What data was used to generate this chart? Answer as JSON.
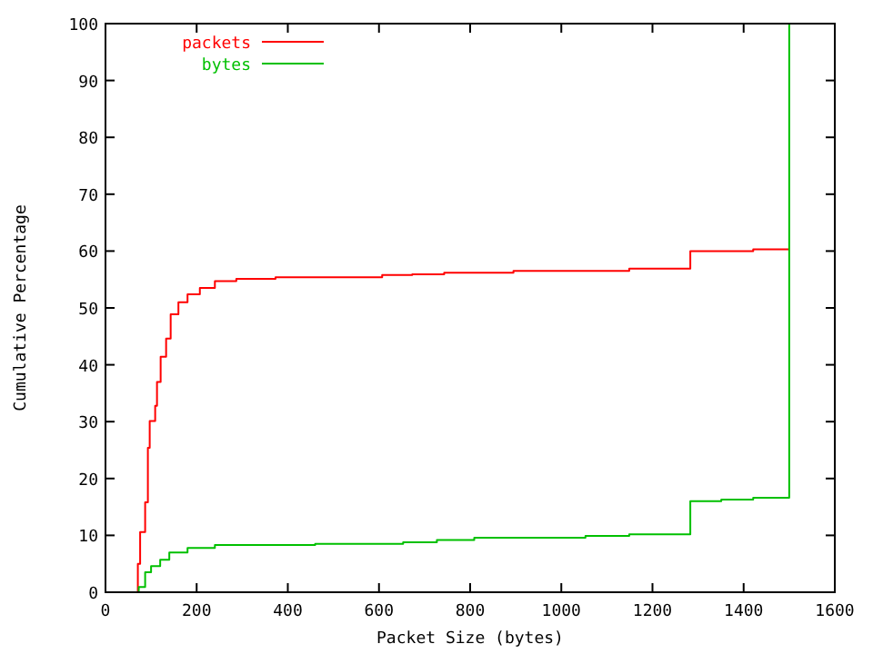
{
  "chart_data": {
    "type": "step",
    "xlabel": "Packet Size (bytes)",
    "ylabel": "Cumulative Percentage",
    "xlim": [
      0,
      1600
    ],
    "ylim": [
      0,
      100
    ],
    "xticks": [
      0,
      200,
      400,
      600,
      800,
      1000,
      1200,
      1400,
      1600
    ],
    "yticks": [
      0,
      10,
      20,
      30,
      40,
      50,
      60,
      70,
      80,
      90,
      100
    ],
    "grid": false,
    "legend": "top left",
    "line_style": "solid",
    "series": [
      {
        "name": "packets",
        "color": "#ff0000",
        "x": [
          64,
          71,
          76,
          87,
          93,
          97,
          109,
          113,
          121,
          133,
          143,
          160,
          180,
          207,
          240,
          287,
          373,
          607,
          673,
          743,
          895,
          1149,
          1283,
          1421,
          1500
        ],
        "values": [
          0,
          5,
          10.6,
          15.8,
          25.4,
          30.1,
          32.8,
          37,
          41.4,
          44.6,
          48.9,
          51,
          52.4,
          53.5,
          54.7,
          55.1,
          55.4,
          55.8,
          55.9,
          56.2,
          56.5,
          56.9,
          60.0,
          60.3,
          60.3
        ]
      },
      {
        "name": "bytes",
        "color": "#00c000",
        "x": [
          64,
          73,
          87,
          100,
          120,
          140,
          180,
          240,
          460,
          653,
          727,
          809,
          1053,
          1149,
          1283,
          1351,
          1421,
          1500
        ],
        "values": [
          0,
          0.9,
          3.5,
          4.6,
          5.7,
          7,
          7.8,
          8.3,
          8.5,
          8.8,
          9.2,
          9.6,
          9.9,
          10.2,
          16.0,
          16.3,
          16.6,
          100
        ]
      }
    ]
  }
}
